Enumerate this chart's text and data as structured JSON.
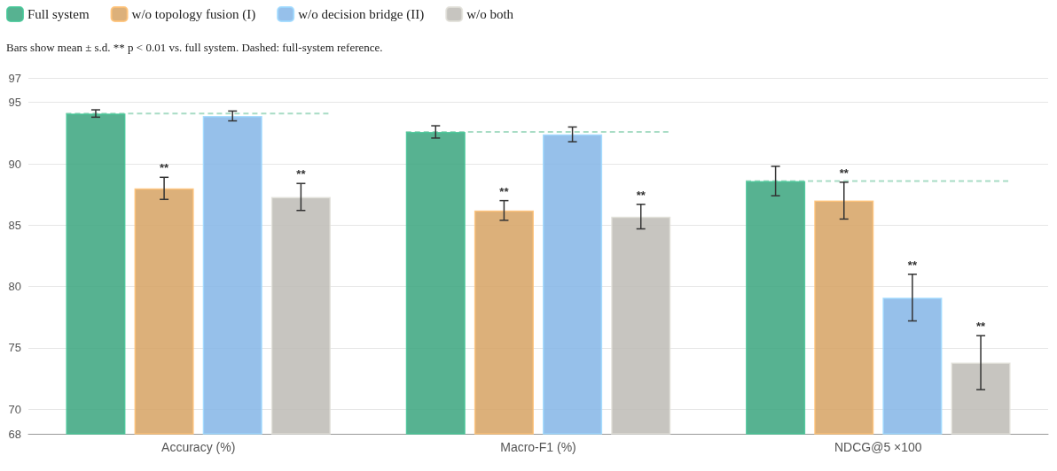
{
  "chart_data": {
    "type": "bar",
    "subtitle": "Bars show mean ± s.d. ** p < 0.01 vs. full system. Dashed: full-system reference.",
    "categories": [
      "Accuracy (%)",
      "Macro-F1 (%)",
      "NDCG@5 ×100"
    ],
    "series": [
      {
        "name": "Full system",
        "color": "#3aa57e",
        "values": [
          94.1,
          92.6,
          88.6
        ],
        "errors": [
          0.3,
          0.5,
          1.2
        ],
        "value_labels": [
          null,
          null,
          null
        ]
      },
      {
        "name": "w/o topology fusion (I)",
        "color": "#d6a263",
        "values": [
          88.0,
          86.2,
          87.0
        ],
        "errors": [
          0.9,
          0.8,
          1.5
        ],
        "value_labels": [
          "**",
          "**",
          "**"
        ]
      },
      {
        "name": "w/o decision bridge (II)",
        "color": "#84b5e6",
        "values": [
          93.9,
          92.4,
          79.1
        ],
        "errors": [
          0.4,
          0.6,
          1.9
        ],
        "value_labels": [
          null,
          null,
          "**"
        ]
      },
      {
        "name": "w/o both",
        "color": "#bdbbb5",
        "values": [
          87.3,
          85.7,
          73.8
        ],
        "errors": [
          1.1,
          1.0,
          2.2
        ],
        "value_labels": [
          "**",
          "**",
          "**"
        ]
      }
    ],
    "ylim": [
      68,
      97
    ],
    "yticks": [
      68,
      70,
      75,
      80,
      85,
      90,
      95,
      97
    ],
    "grid": "y",
    "legend": "top left",
    "ref_lines": [
      {
        "axis": "y",
        "value": 94.1,
        "color": "#a8dcc5",
        "line_style": "dashed"
      },
      {
        "axis": "y",
        "value": 92.6,
        "color": "#a8dcc5",
        "line_style": "dashed"
      },
      {
        "axis": "y",
        "value": 88.6,
        "color": "#a8dcc5",
        "line_style": "dashed"
      }
    ]
  }
}
